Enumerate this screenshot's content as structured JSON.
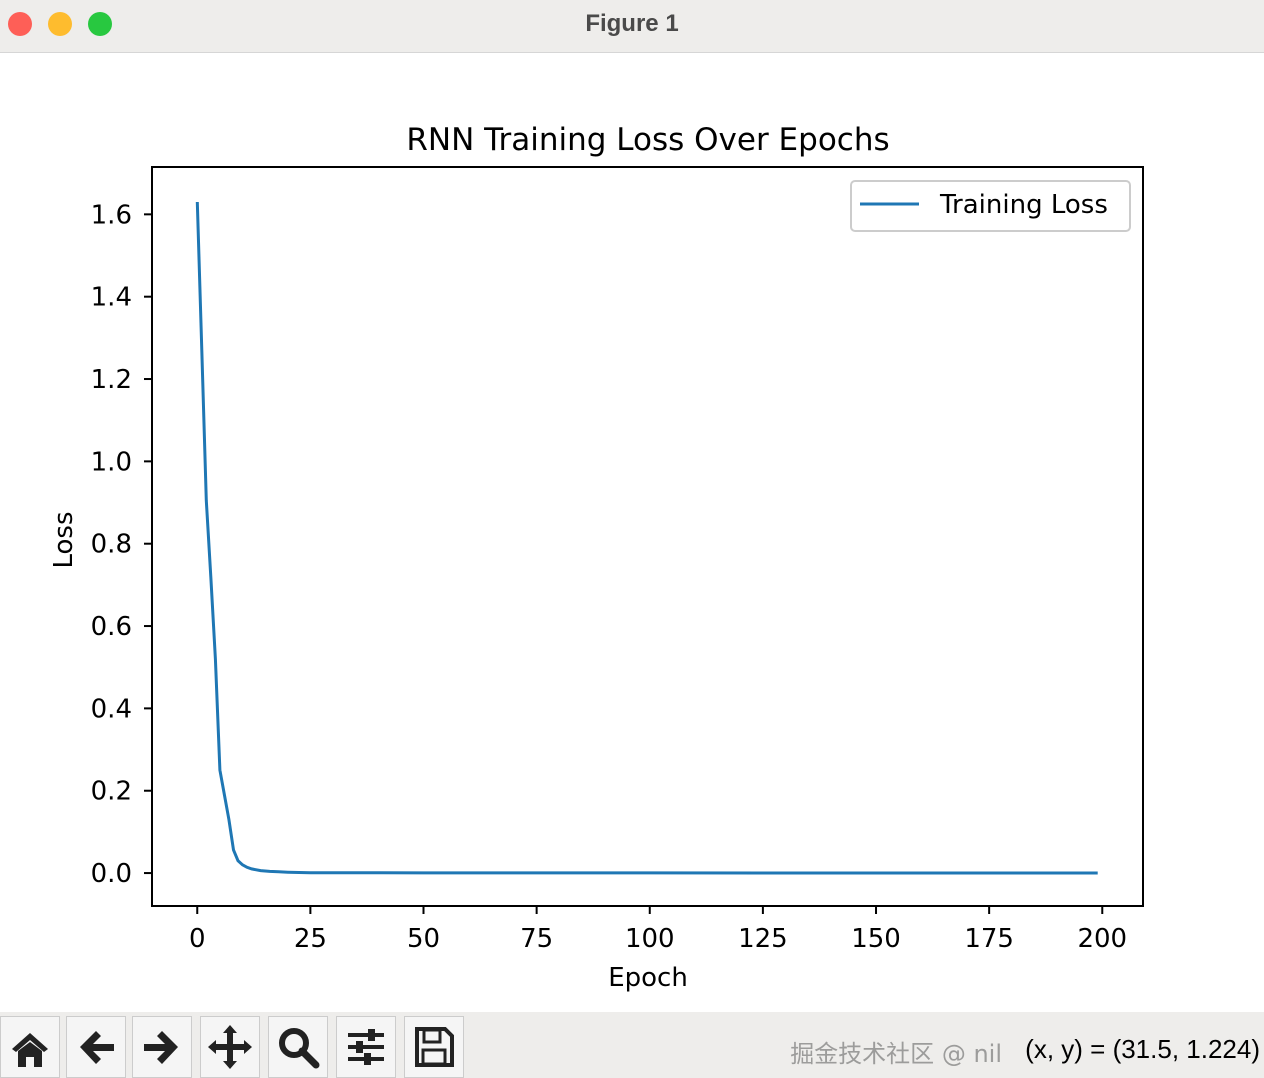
{
  "window": {
    "title": "Figure 1"
  },
  "chart_data": {
    "type": "line",
    "title": "RNN Training Loss Over Epochs",
    "xlabel": "Epoch",
    "ylabel": "Loss",
    "xlim": [
      -10,
      209
    ],
    "ylim": [
      -0.08,
      1.715
    ],
    "xticks": [
      0,
      25,
      50,
      75,
      100,
      125,
      150,
      175,
      200
    ],
    "yticks": [
      "0.0",
      "0.2",
      "0.4",
      "0.6",
      "0.8",
      "1.0",
      "1.2",
      "1.4",
      "1.6"
    ],
    "grid": false,
    "legend_position": "top-right",
    "series": [
      {
        "name": "Training Loss",
        "color": "#1f77b4",
        "x": [
          0,
          1,
          2,
          3,
          4,
          5,
          6,
          7,
          8,
          9,
          10,
          11,
          12,
          14,
          16,
          18,
          20,
          25,
          30,
          50,
          100,
          150,
          199
        ],
        "y": [
          1.63,
          1.27,
          0.905,
          0.72,
          0.52,
          0.25,
          0.19,
          0.13,
          0.056,
          0.03,
          0.02,
          0.014,
          0.01,
          0.006,
          0.004,
          0.003,
          0.002,
          0.001,
          0.0008,
          0.0005,
          0.0003,
          0.0002,
          0.0002
        ]
      }
    ]
  },
  "toolbar": {
    "buttons": [
      "home",
      "back",
      "forward",
      "pan",
      "zoom",
      "configure-subplots",
      "save"
    ],
    "coords": "(x, y) = (31.5, 1.224)",
    "watermark": "掘金技术社区 @ nil"
  }
}
